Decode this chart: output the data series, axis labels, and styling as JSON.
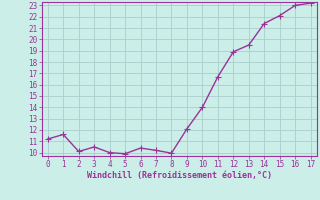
{
  "x": [
    0,
    1,
    2,
    3,
    4,
    5,
    6,
    7,
    8,
    9,
    10,
    11,
    12,
    13,
    14,
    15,
    16,
    17
  ],
  "y": [
    11.2,
    11.6,
    10.1,
    10.5,
    10.0,
    9.9,
    10.4,
    10.2,
    9.95,
    12.1,
    14.0,
    16.7,
    18.9,
    19.5,
    21.4,
    22.1,
    23.0,
    23.2
  ],
  "line_color": "#993399",
  "marker_color": "#993399",
  "bg_color": "#cceee8",
  "grid_color": "#aacccc",
  "xlabel": "Windchill (Refroidissement éolien,°C)",
  "xlabel_color": "#993399",
  "tick_color": "#993399",
  "spine_color": "#993399",
  "ylim_min": 10,
  "ylim_max": 23,
  "xlim_min": 0,
  "xlim_max": 17,
  "yticks": [
    10,
    11,
    12,
    13,
    14,
    15,
    16,
    17,
    18,
    19,
    20,
    21,
    22,
    23
  ],
  "xticks": [
    0,
    1,
    2,
    3,
    4,
    5,
    6,
    7,
    8,
    9,
    10,
    11,
    12,
    13,
    14,
    15,
    16,
    17
  ],
  "tick_fontsize": 5.5,
  "xlabel_fontsize": 6.0,
  "linewidth": 1.0,
  "markersize": 2.0
}
